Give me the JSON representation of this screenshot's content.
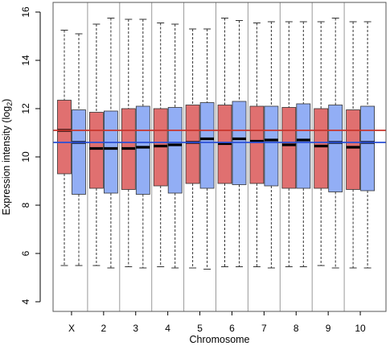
{
  "chart_data": {
    "type": "boxplot",
    "xlabel": "Chromosome",
    "ylabel": {
      "prefix": "Expression intensity (log",
      "subscript": "2",
      "suffix": ")"
    },
    "ylim": [
      3.6,
      16.4
    ],
    "yticks": [
      4,
      6,
      8,
      10,
      12,
      14,
      16
    ],
    "categories": [
      "X",
      "2",
      "3",
      "4",
      "5",
      "6",
      "7",
      "8",
      "9",
      "10"
    ],
    "grid": "vertical separators between chromosomes",
    "legend": "none",
    "series_colors": {
      "red": "#e07070",
      "blue": "#92aef5"
    },
    "reference_lines": [
      {
        "color": "#c8342c",
        "y": 11.1
      },
      {
        "color": "#2a4fd6",
        "y": 10.6
      }
    ],
    "boxes": [
      {
        "category": "X",
        "series": "red",
        "min": 5.5,
        "q1": 9.3,
        "median": 11.1,
        "q3": 12.35,
        "max": 15.25
      },
      {
        "category": "X",
        "series": "blue",
        "min": 5.5,
        "q1": 8.45,
        "median": 10.6,
        "q3": 11.95,
        "max": 15.1
      },
      {
        "category": "2",
        "series": "red",
        "min": 5.5,
        "q1": 8.7,
        "median": 10.35,
        "q3": 11.85,
        "max": 15.5
      },
      {
        "category": "2",
        "series": "blue",
        "min": 5.4,
        "q1": 8.5,
        "median": 10.35,
        "q3": 11.9,
        "max": 15.75
      },
      {
        "category": "3",
        "series": "red",
        "min": 5.45,
        "q1": 8.65,
        "median": 10.35,
        "q3": 12.0,
        "max": 15.7
      },
      {
        "category": "3",
        "series": "blue",
        "min": 5.4,
        "q1": 8.45,
        "median": 10.4,
        "q3": 12.1,
        "max": 15.7
      },
      {
        "category": "4",
        "series": "red",
        "min": 5.45,
        "q1": 8.8,
        "median": 10.45,
        "q3": 12.0,
        "max": 15.55
      },
      {
        "category": "4",
        "series": "blue",
        "min": 5.4,
        "q1": 8.5,
        "median": 10.5,
        "q3": 12.05,
        "max": 15.5
      },
      {
        "category": "5",
        "series": "red",
        "min": 5.4,
        "q1": 8.9,
        "median": 10.6,
        "q3": 12.15,
        "max": 15.3
      },
      {
        "category": "5",
        "series": "blue",
        "min": 5.35,
        "q1": 8.7,
        "median": 10.75,
        "q3": 12.25,
        "max": 15.3
      },
      {
        "category": "6",
        "series": "red",
        "min": 5.45,
        "q1": 8.9,
        "median": 10.55,
        "q3": 12.15,
        "max": 15.75
      },
      {
        "category": "6",
        "series": "blue",
        "min": 5.45,
        "q1": 8.85,
        "median": 10.75,
        "q3": 12.3,
        "max": 15.65
      },
      {
        "category": "7",
        "series": "red",
        "min": 5.45,
        "q1": 8.9,
        "median": 10.65,
        "q3": 12.1,
        "max": 15.55
      },
      {
        "category": "7",
        "series": "blue",
        "min": 5.4,
        "q1": 8.8,
        "median": 10.7,
        "q3": 12.1,
        "max": 15.6
      },
      {
        "category": "8",
        "series": "red",
        "min": 5.45,
        "q1": 8.7,
        "median": 10.5,
        "q3": 12.05,
        "max": 15.6
      },
      {
        "category": "8",
        "series": "blue",
        "min": 5.45,
        "q1": 8.7,
        "median": 10.7,
        "q3": 12.2,
        "max": 15.6
      },
      {
        "category": "9",
        "series": "red",
        "min": 5.5,
        "q1": 8.7,
        "median": 10.45,
        "q3": 12.0,
        "max": 15.6
      },
      {
        "category": "9",
        "series": "blue",
        "min": 5.4,
        "q1": 8.55,
        "median": 10.6,
        "q3": 12.15,
        "max": 15.75
      },
      {
        "category": "10",
        "series": "red",
        "min": 5.4,
        "q1": 8.65,
        "median": 10.4,
        "q3": 11.95,
        "max": 15.6
      },
      {
        "category": "10",
        "series": "blue",
        "min": 5.4,
        "q1": 8.6,
        "median": 10.6,
        "q3": 12.1,
        "max": 15.6
      }
    ]
  }
}
